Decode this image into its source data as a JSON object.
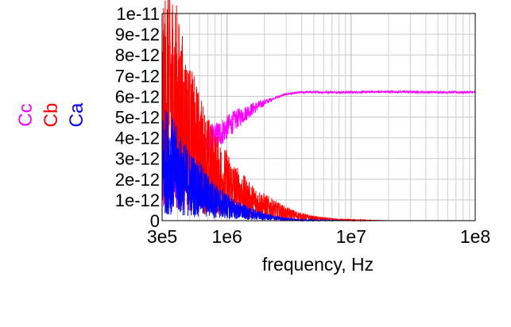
{
  "chart_data": {
    "type": "line",
    "title": "",
    "xlabel": "frequency, Hz",
    "ylabel": "",
    "x_scale": "log",
    "xlim": [
      300000,
      100000000
    ],
    "ylim": [
      0,
      1e-11
    ],
    "grid": true,
    "x_ticks": [
      "3e5",
      "1e6",
      "1e7",
      "1e8"
    ],
    "x_tick_values": [
      300000,
      1000000,
      10000000,
      100000000
    ],
    "y_ticks": [
      "0",
      "1e-12",
      "2e-12",
      "3e-12",
      "4e-12",
      "5e-12",
      "6e-12",
      "7e-12",
      "8e-12",
      "9e-12",
      "1e-11"
    ],
    "y_tick_values": [
      0,
      1e-12,
      2e-12,
      3e-12,
      4e-12,
      5e-12,
      6e-12,
      7e-12,
      8e-12,
      9e-12,
      1e-11
    ],
    "legend_position": "left, vertical",
    "series": [
      {
        "name": "Cc",
        "color": "#ff00ff",
        "x": [
          300000,
          350000,
          400000,
          500000,
          600000,
          700000,
          800000,
          1000000,
          1200000,
          1500000,
          2000000,
          2500000,
          3000000,
          4000000,
          5000000,
          7000000,
          10000000,
          20000000,
          50000000,
          100000000
        ],
        "values": [
          1.5e-12,
          2e-12,
          2.4e-12,
          2.9e-12,
          3.3e-12,
          3.7e-12,
          4e-12,
          4.5e-12,
          4.9e-12,
          5.3e-12,
          5.7e-12,
          5.95e-12,
          6.1e-12,
          6.2e-12,
          6.2e-12,
          6.2e-12,
          6.2e-12,
          6.22e-12,
          6.2e-12,
          6.2e-12
        ]
      },
      {
        "name": "Cb",
        "color": "#ff0000",
        "x": [
          300000,
          330000,
          370000,
          420000,
          500000,
          600000,
          700000,
          800000,
          1000000,
          1200000,
          1500000,
          2000000,
          2500000,
          3000000,
          4000000,
          5000000,
          7000000,
          10000000,
          15000000,
          20000000
        ],
        "values": [
          5e-12,
          6.5e-12,
          6e-12,
          5e-12,
          4e-12,
          3.3e-12,
          2.7e-12,
          2.3e-12,
          1.8e-12,
          1.4e-12,
          1e-12,
          7e-13,
          5e-13,
          3.5e-13,
          2e-13,
          1.2e-13,
          6e-14,
          3e-14,
          1e-14,
          0.0
        ]
      },
      {
        "name": "Ca",
        "color": "#0000ff",
        "x": [
          300000,
          330000,
          370000,
          420000,
          500000,
          600000,
          700000,
          800000,
          1000000,
          1200000,
          1500000,
          2000000,
          2500000,
          3000000,
          4000000,
          5000000,
          7000000,
          10000000
        ],
        "values": [
          2.8e-12,
          2.9e-12,
          2.6e-12,
          2.2e-12,
          1.8e-12,
          1.5e-12,
          1.2e-12,
          9.5e-13,
          7e-13,
          5e-13,
          3.5e-13,
          2e-13,
          1.2e-13,
          7e-14,
          3e-14,
          2e-14,
          1e-14,
          0.0
        ]
      }
    ]
  }
}
